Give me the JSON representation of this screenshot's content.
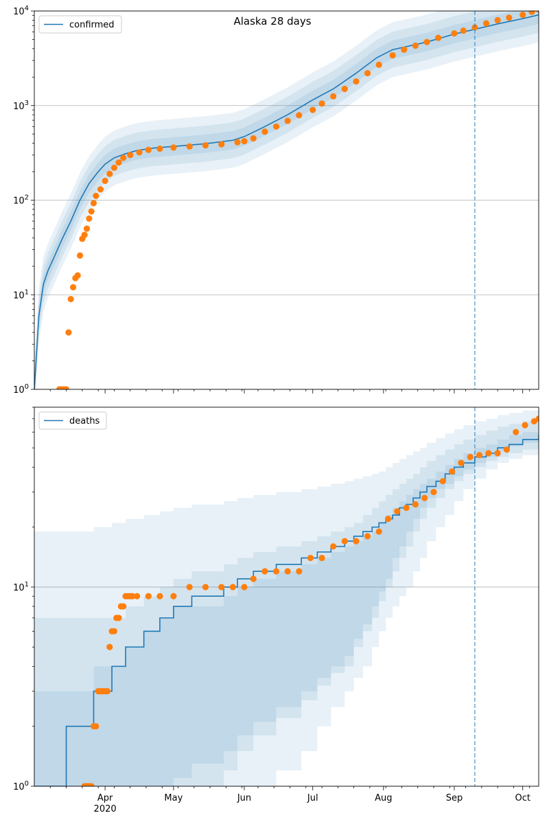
{
  "title": "Alaska 28 days",
  "colors": {
    "model": "#1f77b4",
    "observed": "#ff7f0e",
    "grid": "#b0b0b0"
  },
  "x_tick_labels": [
    "Apr",
    "May",
    "Jun",
    "Jul",
    "Aug",
    "Sep",
    "Oct"
  ],
  "x_year_label": "2020",
  "chart_data": [
    {
      "type": "line",
      "name": "confirmed-panel",
      "yscale": "log",
      "ylim": [
        1,
        10000
      ],
      "xlim": [
        "2020-03-01",
        "2020-10-08"
      ],
      "y_tick_labels": [
        "10^0",
        "10^1",
        "10^2",
        "10^3",
        "10^4"
      ],
      "grid": "horizontal",
      "legend": {
        "label": "confirmed",
        "placement": "top-left"
      },
      "forecast_start": "2020-09-10",
      "model_x": [
        "2020-03-01",
        "2020-03-03",
        "2020-03-05",
        "2020-03-07",
        "2020-03-10",
        "2020-03-13",
        "2020-03-17",
        "2020-03-21",
        "2020-03-25",
        "2020-03-29",
        "2020-04-01",
        "2020-04-05",
        "2020-04-10",
        "2020-04-15",
        "2020-04-22",
        "2020-05-01",
        "2020-05-15",
        "2020-05-27",
        "2020-06-01",
        "2020-06-10",
        "2020-06-20",
        "2020-07-01",
        "2020-07-10",
        "2020-07-20",
        "2020-07-29",
        "2020-08-05",
        "2020-08-20",
        "2020-09-01",
        "2020-09-10",
        "2020-09-20",
        "2020-10-01",
        "2020-10-08"
      ],
      "model_y": [
        1,
        6,
        13,
        18,
        26,
        38,
        60,
        100,
        150,
        200,
        240,
        280,
        310,
        335,
        355,
        370,
        395,
        430,
        470,
        600,
        800,
        1150,
        1500,
        2200,
        3200,
        3900,
        4700,
        5700,
        6400,
        7300,
        8300,
        9100
      ],
      "band_multipliers": [
        1.25,
        1.55,
        1.95
      ],
      "observed_x": [
        "2020-03-12",
        "2020-03-13",
        "2020-03-14",
        "2020-03-15",
        "2020-03-16",
        "2020-03-17",
        "2020-03-18",
        "2020-03-19",
        "2020-03-20",
        "2020-03-21",
        "2020-03-22",
        "2020-03-23",
        "2020-03-24",
        "2020-03-25",
        "2020-03-26",
        "2020-03-27",
        "2020-03-28",
        "2020-03-30",
        "2020-04-01",
        "2020-04-03",
        "2020-04-05",
        "2020-04-07",
        "2020-04-09",
        "2020-04-12",
        "2020-04-16",
        "2020-04-20",
        "2020-04-25",
        "2020-05-01",
        "2020-05-08",
        "2020-05-15",
        "2020-05-22",
        "2020-05-29",
        "2020-06-01",
        "2020-06-05",
        "2020-06-10",
        "2020-06-15",
        "2020-06-20",
        "2020-06-25",
        "2020-07-01",
        "2020-07-05",
        "2020-07-10",
        "2020-07-15",
        "2020-07-20",
        "2020-07-25",
        "2020-07-30",
        "2020-08-05",
        "2020-08-10",
        "2020-08-15",
        "2020-08-20",
        "2020-08-25",
        "2020-09-01",
        "2020-09-05",
        "2020-09-10",
        "2020-09-15",
        "2020-09-20",
        "2020-09-25",
        "2020-10-01",
        "2020-10-05",
        "2020-10-08"
      ],
      "observed_y": [
        1,
        1,
        1,
        1,
        4,
        9,
        12,
        15,
        16,
        26,
        39,
        43,
        50,
        64,
        76,
        93,
        111,
        130,
        160,
        190,
        220,
        250,
        280,
        300,
        320,
        340,
        350,
        360,
        370,
        380,
        390,
        410,
        420,
        450,
        530,
        600,
        690,
        790,
        900,
        1050,
        1250,
        1500,
        1800,
        2200,
        2700,
        3400,
        3900,
        4300,
        4700,
        5200,
        5800,
        6200,
        6700,
        7400,
        8000,
        8500,
        9100,
        9800,
        10400
      ]
    },
    {
      "type": "line",
      "name": "deaths-panel",
      "yscale": "log",
      "ylim": [
        1,
        80
      ],
      "xlim": [
        "2020-03-01",
        "2020-10-08"
      ],
      "y_tick_labels": [
        "10^0",
        "10^1"
      ],
      "grid": "horizontal",
      "legend": {
        "label": "deaths",
        "placement": "top-left"
      },
      "forecast_start": "2020-09-10",
      "model_steps": [
        [
          "2020-03-01",
          1
        ],
        [
          "2020-03-15",
          2
        ],
        [
          "2020-03-27",
          3
        ],
        [
          "2020-04-04",
          4
        ],
        [
          "2020-04-10",
          5
        ],
        [
          "2020-04-18",
          6
        ],
        [
          "2020-04-25",
          7
        ],
        [
          "2020-05-01",
          8
        ],
        [
          "2020-05-09",
          9
        ],
        [
          "2020-05-23",
          10
        ],
        [
          "2020-05-29",
          11
        ],
        [
          "2020-06-05",
          12
        ],
        [
          "2020-06-15",
          13
        ],
        [
          "2020-06-26",
          14
        ],
        [
          "2020-07-03",
          15
        ],
        [
          "2020-07-09",
          16
        ],
        [
          "2020-07-15",
          17
        ],
        [
          "2020-07-19",
          18
        ],
        [
          "2020-07-23",
          19
        ],
        [
          "2020-07-27",
          20
        ],
        [
          "2020-07-30",
          21
        ],
        [
          "2020-08-02",
          22
        ],
        [
          "2020-08-05",
          23
        ],
        [
          "2020-08-08",
          25
        ],
        [
          "2020-08-11",
          26
        ],
        [
          "2020-08-14",
          28
        ],
        [
          "2020-08-17",
          30
        ],
        [
          "2020-08-20",
          32
        ],
        [
          "2020-08-24",
          34
        ],
        [
          "2020-08-28",
          37
        ],
        [
          "2020-09-01",
          40
        ],
        [
          "2020-09-05",
          42
        ],
        [
          "2020-09-10",
          45
        ],
        [
          "2020-09-15",
          47
        ],
        [
          "2020-09-20",
          50
        ],
        [
          "2020-09-25",
          52
        ],
        [
          "2020-10-01",
          55
        ],
        [
          "2020-10-08",
          58
        ]
      ],
      "bands": [
        {
          "lo": [
            1,
            1,
            1,
            1,
            1,
            1,
            1,
            1.1,
            1.3,
            1.5,
            1.8,
            2.1,
            2.5,
            3,
            3.5,
            4,
            4.5,
            5.5,
            6.5,
            8,
            9.5,
            11,
            14,
            16,
            19,
            22,
            25,
            28,
            31,
            33,
            36,
            39,
            42,
            45,
            48,
            51,
            53,
            55
          ],
          "hi": [
            3,
            3,
            4,
            4,
            5,
            6,
            7,
            8,
            8,
            9,
            10,
            11,
            12,
            13,
            14,
            15,
            16,
            17,
            18,
            19,
            21,
            23,
            25,
            27,
            29,
            31,
            33,
            35,
            38,
            41,
            44,
            47,
            50,
            52,
            55,
            58,
            60,
            62
          ]
        },
        {
          "lo": [
            1,
            1,
            1,
            1,
            1,
            1,
            1,
            1,
            1,
            1.2,
            1.5,
            1.8,
            2.2,
            2.7,
            3.2,
            3.7,
            4,
            5,
            6,
            7,
            8.5,
            10,
            12,
            14,
            16,
            19,
            22,
            25,
            28,
            31,
            34,
            37,
            40,
            43,
            45,
            47,
            49,
            50
          ],
          "hi": [
            7,
            7,
            7,
            7,
            8,
            9,
            10,
            11,
            12,
            13,
            14,
            15,
            16,
            17,
            18,
            19,
            20,
            21,
            23,
            25,
            27,
            29,
            31,
            33,
            35,
            37,
            40,
            43,
            46,
            49,
            52,
            55,
            58,
            61,
            64,
            66,
            68,
            70
          ]
        },
        {
          "lo": [
            1,
            1,
            1,
            1,
            1,
            1,
            1,
            1,
            1,
            1,
            1,
            1,
            1.2,
            1.5,
            2,
            2.5,
            3,
            3.5,
            4,
            5,
            6,
            7,
            8,
            9,
            10,
            12,
            14,
            17,
            20,
            23,
            27,
            31,
            35,
            39,
            42,
            44,
            46,
            48
          ],
          "hi": [
            19,
            19,
            20,
            21,
            22,
            23,
            24,
            25,
            26,
            27,
            28,
            29,
            30,
            31,
            32,
            33,
            34,
            35,
            36,
            37,
            38,
            40,
            42,
            44,
            46,
            48,
            50,
            53,
            56,
            59,
            62,
            65,
            68,
            70,
            73,
            75,
            77,
            80
          ]
        }
      ],
      "observed_x": [
        "2020-03-23",
        "2020-03-24",
        "2020-03-25",
        "2020-03-26",
        "2020-03-27",
        "2020-03-28",
        "2020-03-29",
        "2020-03-30",
        "2020-03-31",
        "2020-04-01",
        "2020-04-02",
        "2020-04-03",
        "2020-04-04",
        "2020-04-05",
        "2020-04-06",
        "2020-04-07",
        "2020-04-08",
        "2020-04-09",
        "2020-04-10",
        "2020-04-11",
        "2020-04-12",
        "2020-04-13",
        "2020-04-15",
        "2020-04-20",
        "2020-04-25",
        "2020-05-01",
        "2020-05-08",
        "2020-05-15",
        "2020-05-22",
        "2020-05-27",
        "2020-06-01",
        "2020-06-05",
        "2020-06-10",
        "2020-06-15",
        "2020-06-20",
        "2020-06-25",
        "2020-06-30",
        "2020-07-05",
        "2020-07-10",
        "2020-07-15",
        "2020-07-20",
        "2020-07-25",
        "2020-07-30",
        "2020-08-03",
        "2020-08-07",
        "2020-08-11",
        "2020-08-15",
        "2020-08-19",
        "2020-08-23",
        "2020-08-27",
        "2020-08-31",
        "2020-09-04",
        "2020-09-08",
        "2020-09-12",
        "2020-09-16",
        "2020-09-20",
        "2020-09-24",
        "2020-09-28",
        "2020-10-02",
        "2020-10-06",
        "2020-10-08"
      ],
      "observed_y": [
        1,
        1,
        1,
        1,
        2,
        2,
        3,
        3,
        3,
        3,
        3,
        5,
        6,
        6,
        7,
        7,
        8,
        8,
        9,
        9,
        9,
        9,
        9,
        9,
        9,
        9,
        10,
        10,
        10,
        10,
        10,
        11,
        12,
        12,
        12,
        12,
        14,
        14,
        16,
        17,
        17,
        18,
        19,
        22,
        24,
        25,
        26,
        28,
        30,
        34,
        38,
        42,
        45,
        46,
        47,
        47,
        49,
        60,
        65,
        68,
        70
      ]
    }
  ]
}
